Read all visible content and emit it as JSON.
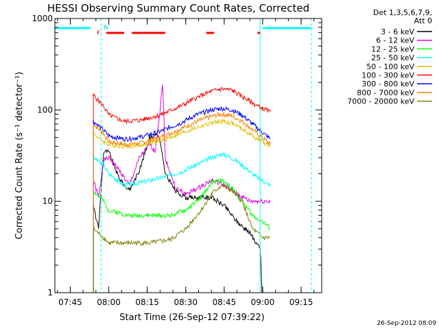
{
  "chart_data": {
    "type": "line",
    "title": "HESSI Observing Summary Count Rates, Corrected",
    "xlabel": "Start Time (26-Sep-12 07:39:22)",
    "ylabel": "Corrected Count Rate (s⁻¹ detector⁻¹)",
    "y_scale": "log",
    "ylim": [
      1,
      1000
    ],
    "xlim_minutes": [
      "07:39",
      "09:23"
    ],
    "y_ticks": [
      "1",
      "10",
      "100",
      "1000"
    ],
    "x_ticks": [
      "07:45",
      "08:00",
      "08:15",
      "08:30",
      "08:45",
      "09:00",
      "09:15"
    ],
    "detectors_label": "Det 1,3,5,6,7,9,",
    "attenuator_label": "Att 0",
    "footer_date": "26-Sep-2012 08:09",
    "flags": {
      "F_label": "F",
      "N_label": "N",
      "saa_segments": [
        [
          "07:39",
          "07:53"
        ],
        [
          "09:00",
          "09:19"
        ]
      ],
      "flare_segments": [
        [
          "07:59",
          "08:06"
        ],
        [
          "08:09",
          "08:22"
        ],
        [
          "08:38",
          "08:41"
        ],
        [
          "08:58",
          "08:59"
        ]
      ],
      "night_boundaries": [
        "07:39",
        "07:57",
        "08:59",
        "09:19"
      ]
    },
    "series": [
      {
        "name": "3 - 6 keV",
        "color": "#000000",
        "x": [
          "07:54",
          "07:56",
          "07:58",
          "08:00",
          "08:04",
          "08:08",
          "08:12",
          "08:16",
          "08:19",
          "08:20",
          "08:22",
          "08:26",
          "08:30",
          "08:35",
          "08:40",
          "08:45",
          "08:50",
          "08:55",
          "08:59",
          "09:00"
        ],
        "values": [
          9,
          5,
          35,
          35,
          18,
          13,
          22,
          50,
          55,
          45,
          20,
          13,
          11,
          11,
          11,
          9,
          6,
          4.5,
          3,
          0
        ]
      },
      {
        "name": "6 - 12 keV",
        "color": "#e000e0",
        "x": [
          "07:54",
          "07:56",
          "07:58",
          "08:00",
          "08:04",
          "08:08",
          "08:12",
          "08:16",
          "08:18",
          "08:20",
          "08:21",
          "08:22",
          "08:26",
          "08:30",
          "08:35",
          "08:40",
          "08:45",
          "08:50",
          "08:55",
          "09:00",
          "09:03"
        ],
        "values": [
          17,
          11,
          28,
          30,
          22,
          15,
          30,
          42,
          35,
          100,
          200,
          30,
          14,
          12,
          14,
          17,
          15,
          12,
          10,
          10,
          10
        ]
      },
      {
        "name": "12 - 25 keV",
        "color": "#00ff00",
        "x": [
          "07:54",
          "07:58",
          "08:00",
          "08:08",
          "08:16",
          "08:24",
          "08:30",
          "08:36",
          "08:40",
          "08:44",
          "08:48",
          "08:52",
          "08:56",
          "09:00",
          "09:03"
        ],
        "values": [
          13,
          10,
          8,
          7,
          7,
          7,
          8,
          11,
          16,
          17,
          14,
          10,
          7,
          6,
          5
        ]
      },
      {
        "name": "25 - 50 keV",
        "color": "#00ffff",
        "x": [
          "07:54",
          "07:58",
          "08:00",
          "08:06",
          "08:12",
          "08:20",
          "08:28",
          "08:34",
          "08:40",
          "08:44",
          "08:48",
          "08:52",
          "08:58",
          "09:03"
        ],
        "values": [
          30,
          25,
          20,
          15,
          16,
          18,
          21,
          25,
          30,
          33,
          30,
          25,
          18,
          15
        ]
      },
      {
        "name": "50 - 100 keV",
        "color": "#e0c000",
        "x": [
          "07:54",
          "07:58",
          "08:00",
          "08:06",
          "08:12",
          "08:20",
          "08:28",
          "08:34",
          "08:40",
          "08:44",
          "08:48",
          "08:52",
          "08:58",
          "09:03"
        ],
        "values": [
          55,
          45,
          42,
          40,
          41,
          46,
          55,
          64,
          72,
          75,
          72,
          62,
          48,
          40
        ]
      },
      {
        "name": "100 - 300 keV",
        "color": "#ff0000",
        "x": [
          "07:54",
          "07:58",
          "08:00",
          "08:06",
          "08:12",
          "08:20",
          "08:28",
          "08:34",
          "08:40",
          "08:44",
          "08:48",
          "08:52",
          "08:58",
          "09:03"
        ],
        "values": [
          145,
          110,
          88,
          75,
          77,
          88,
          110,
          135,
          160,
          170,
          165,
          140,
          110,
          95
        ]
      },
      {
        "name": "300 - 800 keV",
        "color": "#0000ff",
        "x": [
          "07:54",
          "07:58",
          "08:00",
          "08:06",
          "08:12",
          "08:20",
          "08:28",
          "08:34",
          "08:40",
          "08:44",
          "08:48",
          "08:52",
          "08:58",
          "09:03"
        ],
        "values": [
          75,
          60,
          52,
          48,
          50,
          58,
          72,
          88,
          100,
          104,
          100,
          88,
          63,
          48
        ]
      },
      {
        "name": "800 - 7000 keV",
        "color": "#ff8000",
        "x": [
          "07:54",
          "07:58",
          "08:00",
          "08:06",
          "08:12",
          "08:20",
          "08:28",
          "08:34",
          "08:40",
          "08:44",
          "08:48",
          "08:52",
          "08:58",
          "09:03"
        ],
        "values": [
          70,
          55,
          45,
          42,
          43,
          50,
          62,
          74,
          85,
          90,
          86,
          75,
          55,
          42
        ]
      },
      {
        "name": "7000 - 20000 keV",
        "color": "#808000",
        "x": [
          "07:54",
          "07:58",
          "08:00",
          "08:08",
          "08:16",
          "08:24",
          "08:30",
          "08:36",
          "08:40",
          "08:44",
          "08:48",
          "08:52",
          "08:56",
          "09:00",
          "09:03"
        ],
        "values": [
          5,
          4,
          3.5,
          3.5,
          3.5,
          3.8,
          5,
          8,
          12,
          15,
          13,
          10,
          5,
          4,
          4
        ]
      }
    ]
  }
}
